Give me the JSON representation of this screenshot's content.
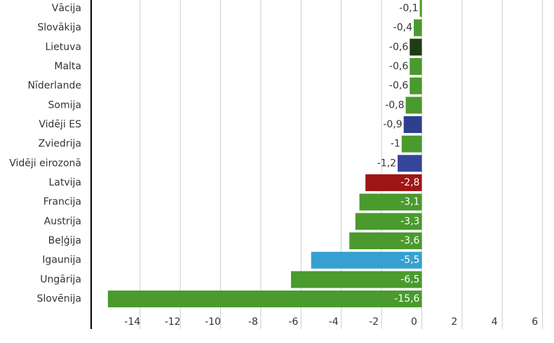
{
  "chart_data": {
    "type": "barh",
    "categories": [
      "Vācija",
      "Slovākija",
      "Lietuva",
      "Malta",
      "Nīderlande",
      "Somija",
      "Vidēji ES",
      "Zviedrija",
      "Vidēji eirozonā",
      "Latvija",
      "Francija",
      "Austrija",
      "Beļģija",
      "Igaunija",
      "Ungārija",
      "Slovēnija"
    ],
    "values": [
      -0.1,
      -0.4,
      -0.6,
      -0.6,
      -0.6,
      -0.8,
      -0.9,
      -1,
      -1.2,
      -2.8,
      -3.1,
      -3.3,
      -3.6,
      -5.5,
      -6.5,
      -15.6
    ],
    "value_labels": [
      "-0,1",
      "-0,4",
      "-0,6",
      "-0,6",
      "-0,6",
      "-0,8",
      "-0,9",
      "-1",
      "-1,2",
      "-2,8",
      "-3,1",
      "-3,3",
      "-3,6",
      "-5,5",
      "-6,5",
      "-15,6"
    ],
    "colors": [
      "#4a9a2e",
      "#4a9a2e",
      "#1e3d12",
      "#4a9a2e",
      "#4a9a2e",
      "#4a9a2e",
      "#2e3f8f",
      "#4a9a2e",
      "#34459a",
      "#a01515",
      "#4a9a2e",
      "#4a9a2e",
      "#4a9a2e",
      "#36a0d0",
      "#4a9a2e",
      "#4a9a2e"
    ],
    "xlim": [
      -16.5,
      6.5
    ],
    "xticks": [
      -14,
      -12,
      -10,
      -8,
      -6,
      -4,
      -2,
      0,
      2,
      4,
      6
    ],
    "grid": true
  }
}
